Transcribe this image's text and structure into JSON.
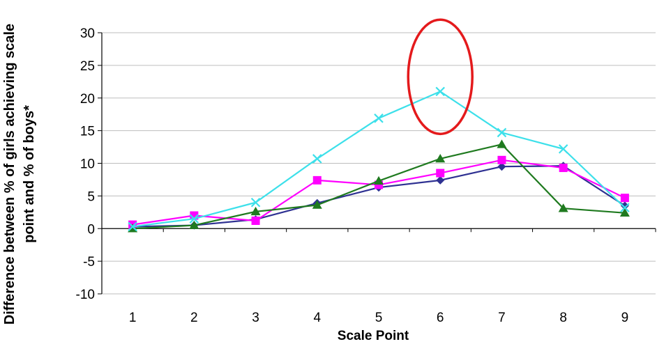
{
  "chart_data": {
    "type": "line",
    "xlabel": "Scale Point",
    "ylabel_line1": "Difference between % of girls achieving scale",
    "ylabel_line2": "point and % of boys*",
    "x": [
      1,
      2,
      3,
      4,
      5,
      6,
      7,
      8,
      9
    ],
    "ylim": [
      -10,
      30
    ],
    "yticks": [
      -10,
      -5,
      0,
      5,
      10,
      15,
      20,
      25,
      30
    ],
    "grid": "horizontal",
    "legend": "none",
    "series": [
      {
        "color": "#2e3192",
        "marker": "diamond",
        "values": [
          0.3,
          0.5,
          1.4,
          3.9,
          6.3,
          7.4,
          9.5,
          9.6,
          3.5
        ]
      },
      {
        "color": "#ff00ff",
        "marker": "square",
        "values": [
          0.6,
          2.0,
          1.2,
          7.4,
          6.7,
          8.5,
          10.5,
          9.3,
          4.7
        ]
      },
      {
        "color": "#1f7a1f",
        "marker": "triangle",
        "values": [
          0.0,
          0.5,
          2.6,
          3.6,
          7.3,
          10.7,
          12.9,
          3.1,
          2.4
        ]
      },
      {
        "color": "#3de0ea",
        "marker": "x",
        "values": [
          0.3,
          1.5,
          4.0,
          10.7,
          16.9,
          21.0,
          14.7,
          12.2,
          3.2
        ]
      }
    ],
    "annotation": {
      "type": "ellipse",
      "color": "#e41a1c",
      "x": 6,
      "y_range": [
        14.5,
        32
      ]
    }
  }
}
